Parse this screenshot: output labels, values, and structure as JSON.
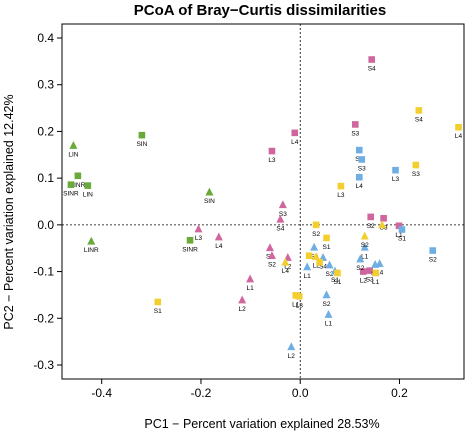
{
  "chart_data": {
    "type": "scatter",
    "title": "PCoA of Bray−Curtis dissimilarities",
    "xlabel": "PC1 − Percent variation explained 28.53%",
    "ylabel": "PC2 − Percent variation explained 12.42%",
    "xlim": [
      -0.48,
      0.33
    ],
    "ylim": [
      -0.33,
      0.43
    ],
    "xticks": [
      "-0.4",
      "-0.2",
      "0.0",
      "0.2"
    ],
    "yticks": [
      "-0.3",
      "-0.2",
      "-0.1",
      "0.0",
      "0.1",
      "0.2",
      "0.3",
      "0.4"
    ],
    "xtick_values": [
      -0.4,
      -0.2,
      0.0,
      0.2
    ],
    "ytick_values": [
      -0.3,
      -0.2,
      -0.1,
      0.0,
      0.1,
      0.2,
      0.3,
      0.4
    ],
    "reference_lines": {
      "x": 0,
      "y": 0,
      "style": "dotted"
    },
    "grid": false,
    "legend": "none",
    "colors": {
      "green": "#6aaa3a",
      "pink": "#d0669e",
      "blue": "#6eaee3",
      "yellow": "#f2cf2e"
    },
    "points": [
      {
        "x": -0.457,
        "y": 0.17,
        "shape": "triangle",
        "color": "green",
        "label": "LIN"
      },
      {
        "x": -0.448,
        "y": 0.105,
        "shape": "square",
        "color": "green",
        "label": "LINR"
      },
      {
        "x": -0.462,
        "y": 0.086,
        "shape": "square",
        "color": "green",
        "label": "SINR"
      },
      {
        "x": -0.428,
        "y": 0.084,
        "shape": "square",
        "color": "green",
        "label": "LIN"
      },
      {
        "x": -0.421,
        "y": -0.035,
        "shape": "triangle",
        "color": "green",
        "label": "LINR"
      },
      {
        "x": -0.319,
        "y": 0.192,
        "shape": "square",
        "color": "green",
        "label": "SIN"
      },
      {
        "x": -0.183,
        "y": 0.07,
        "shape": "triangle",
        "color": "green",
        "label": "SIN"
      },
      {
        "x": -0.222,
        "y": -0.033,
        "shape": "square",
        "color": "green",
        "label": "SINR"
      },
      {
        "x": -0.011,
        "y": 0.197,
        "shape": "square",
        "color": "pink",
        "label": "L4"
      },
      {
        "x": -0.057,
        "y": 0.158,
        "shape": "square",
        "color": "pink",
        "label": "L3"
      },
      {
        "x": 0.111,
        "y": 0.215,
        "shape": "square",
        "color": "pink",
        "label": "S3"
      },
      {
        "x": 0.144,
        "y": 0.354,
        "shape": "square",
        "color": "pink",
        "label": "S4"
      },
      {
        "x": -0.035,
        "y": 0.043,
        "shape": "triangle",
        "color": "pink",
        "label": "S3"
      },
      {
        "x": -0.04,
        "y": 0.012,
        "shape": "triangle",
        "color": "pink",
        "label": "S4"
      },
      {
        "x": -0.205,
        "y": -0.009,
        "shape": "triangle",
        "color": "pink",
        "label": "L3"
      },
      {
        "x": -0.164,
        "y": -0.026,
        "shape": "triangle",
        "color": "pink",
        "label": "L4"
      },
      {
        "x": -0.061,
        "y": -0.049,
        "shape": "triangle",
        "color": "pink",
        "label": "S1"
      },
      {
        "x": -0.057,
        "y": -0.066,
        "shape": "triangle",
        "color": "pink",
        "label": "S2"
      },
      {
        "x": -0.025,
        "y": -0.07,
        "shape": "triangle",
        "color": "pink",
        "label": "L2"
      },
      {
        "x": -0.101,
        "y": -0.116,
        "shape": "triangle",
        "color": "pink",
        "label": "L1"
      },
      {
        "x": -0.117,
        "y": -0.161,
        "shape": "triangle",
        "color": "pink",
        "label": "L2"
      },
      {
        "x": 0.142,
        "y": 0.017,
        "shape": "square",
        "color": "pink",
        "label": "S2"
      },
      {
        "x": 0.168,
        "y": 0.014,
        "shape": "square",
        "color": "pink",
        "label": "S3"
      },
      {
        "x": 0.199,
        "y": -0.002,
        "shape": "square",
        "color": "pink",
        "label": "L1"
      },
      {
        "x": 0.14,
        "y": -0.098,
        "shape": "square",
        "color": "pink",
        "label": "S3"
      },
      {
        "x": 0.127,
        "y": -0.1,
        "shape": "square",
        "color": "pink",
        "label": "L2"
      },
      {
        "x": 0.119,
        "y": 0.16,
        "shape": "square",
        "color": "blue",
        "label": "S4"
      },
      {
        "x": 0.124,
        "y": 0.14,
        "shape": "square",
        "color": "blue",
        "label": "S3"
      },
      {
        "x": 0.119,
        "y": 0.102,
        "shape": "square",
        "color": "blue",
        "label": "L4"
      },
      {
        "x": 0.192,
        "y": 0.117,
        "shape": "square",
        "color": "blue",
        "label": "L3"
      },
      {
        "x": 0.205,
        "y": -0.01,
        "shape": "square",
        "color": "blue",
        "label": "S1"
      },
      {
        "x": 0.267,
        "y": -0.055,
        "shape": "square",
        "color": "blue",
        "label": "S2"
      },
      {
        "x": 0.13,
        "y": -0.048,
        "shape": "triangle",
        "color": "blue",
        "label": "L1"
      },
      {
        "x": 0.121,
        "y": -0.073,
        "shape": "triangle",
        "color": "blue",
        "label": "S2"
      },
      {
        "x": 0.151,
        "y": -0.085,
        "shape": "triangle",
        "color": "blue",
        "label": "S1"
      },
      {
        "x": 0.16,
        "y": -0.083,
        "shape": "triangle",
        "color": "blue",
        "label": "L4"
      },
      {
        "x": 0.028,
        "y": -0.048,
        "shape": "triangle",
        "color": "blue",
        "label": "S3"
      },
      {
        "x": 0.046,
        "y": -0.07,
        "shape": "triangle",
        "color": "blue",
        "label": "S4"
      },
      {
        "x": 0.059,
        "y": -0.086,
        "shape": "triangle",
        "color": "blue",
        "label": "S2"
      },
      {
        "x": 0.07,
        "y": -0.099,
        "shape": "triangle",
        "color": "blue",
        "label": "S1"
      },
      {
        "x": 0.053,
        "y": -0.15,
        "shape": "triangle",
        "color": "blue",
        "label": "S2"
      },
      {
        "x": 0.057,
        "y": -0.192,
        "shape": "triangle",
        "color": "blue",
        "label": "L1"
      },
      {
        "x": 0.014,
        "y": -0.09,
        "shape": "triangle",
        "color": "blue",
        "label": "L1"
      },
      {
        "x": -0.018,
        "y": -0.261,
        "shape": "triangle",
        "color": "blue",
        "label": "L2"
      },
      {
        "x": 0.239,
        "y": 0.245,
        "shape": "square",
        "color": "yellow",
        "label": "S4"
      },
      {
        "x": 0.319,
        "y": 0.209,
        "shape": "square",
        "color": "yellow",
        "label": "L4"
      },
      {
        "x": 0.233,
        "y": 0.128,
        "shape": "square",
        "color": "yellow",
        "label": "S3"
      },
      {
        "x": 0.082,
        "y": 0.083,
        "shape": "square",
        "color": "yellow",
        "label": "L3"
      },
      {
        "x": 0.032,
        "y": 0.0,
        "shape": "square",
        "color": "yellow",
        "label": "S2"
      },
      {
        "x": 0.053,
        "y": -0.028,
        "shape": "square",
        "color": "yellow",
        "label": "S1"
      },
      {
        "x": 0.13,
        "y": -0.024,
        "shape": "triangle",
        "color": "yellow",
        "label": "S2"
      },
      {
        "x": 0.165,
        "y": 0.0,
        "shape": "triangle",
        "color": "yellow",
        "label": ""
      },
      {
        "x": 0.032,
        "y": -0.068,
        "shape": "triangle",
        "color": "yellow",
        "label": "L2"
      },
      {
        "x": -0.03,
        "y": -0.08,
        "shape": "triangle",
        "color": "yellow",
        "label": "L4"
      },
      {
        "x": 0.018,
        "y": -0.066,
        "shape": "square",
        "color": "yellow",
        "label": ""
      },
      {
        "x": 0.039,
        "y": -0.08,
        "shape": "square",
        "color": "yellow",
        "label": ""
      },
      {
        "x": 0.075,
        "y": -0.103,
        "shape": "square",
        "color": "yellow",
        "label": "S1"
      },
      {
        "x": 0.152,
        "y": -0.103,
        "shape": "square",
        "color": "yellow",
        "label": "L1"
      },
      {
        "x": -0.009,
        "y": -0.151,
        "shape": "square",
        "color": "yellow",
        "label": "L1"
      },
      {
        "x": -0.002,
        "y": -0.153,
        "shape": "square",
        "color": "yellow",
        "label": "L3"
      },
      {
        "x": -0.287,
        "y": -0.165,
        "shape": "square",
        "color": "yellow",
        "label": "S1"
      }
    ]
  }
}
